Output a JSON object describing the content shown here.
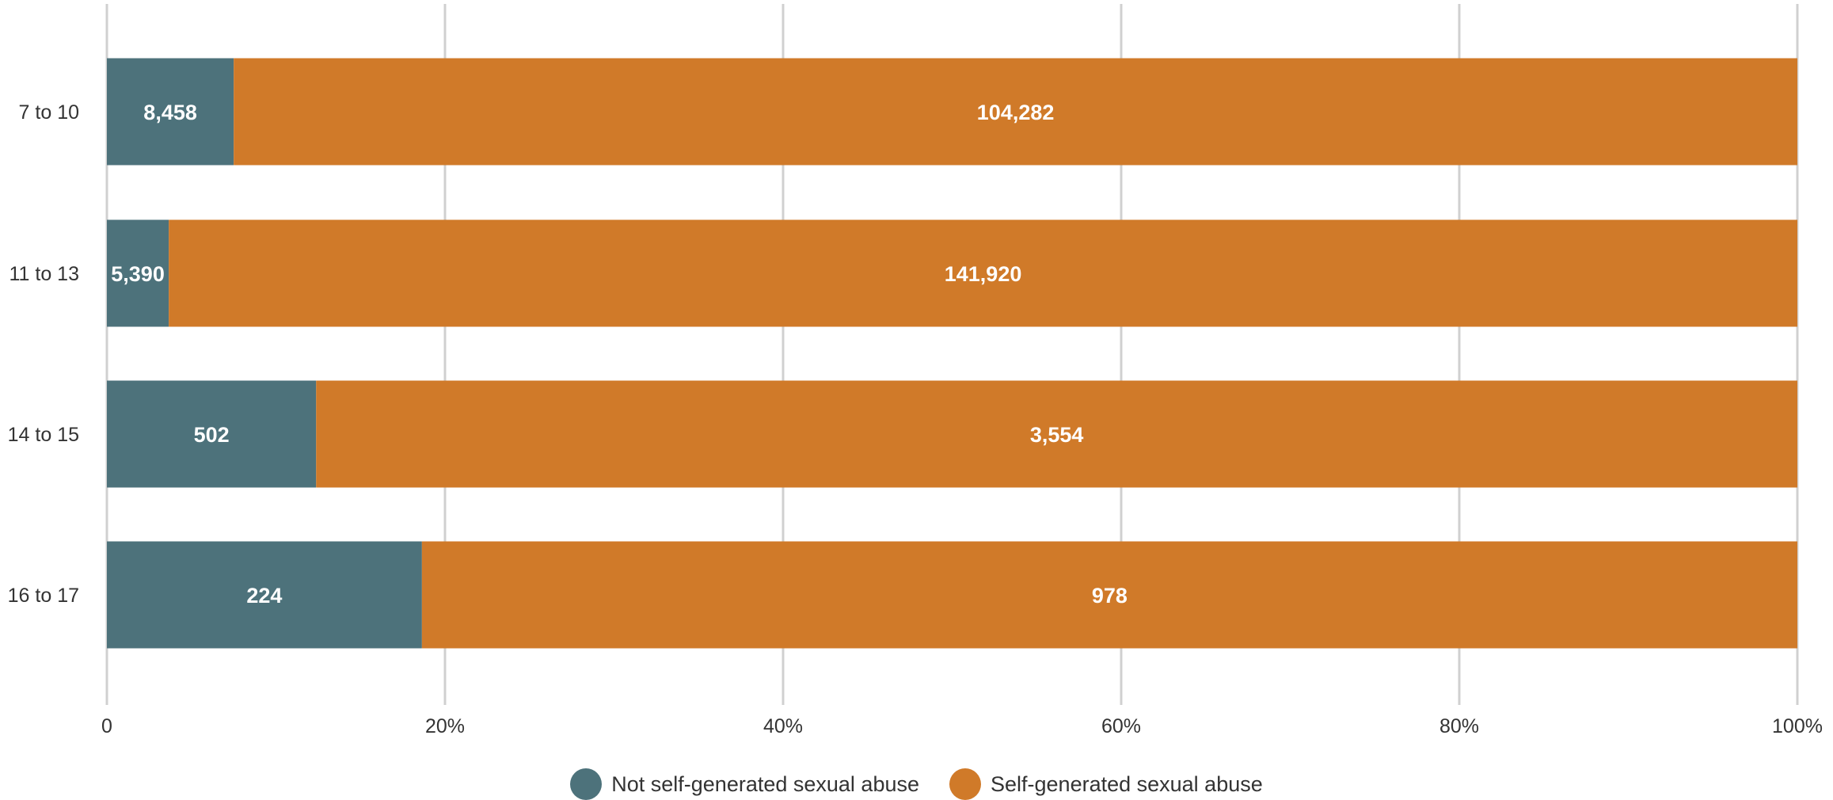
{
  "chart_data": {
    "type": "bar",
    "orientation": "horizontal",
    "stacked": "percent",
    "categories": [
      "7 to 10",
      "11 to 13",
      "14 to 15",
      "16 to 17"
    ],
    "series": [
      {
        "name": "Not self-generated sexual abuse",
        "color": "#4d727b",
        "values": [
          8458,
          5390,
          502,
          224
        ],
        "labels": [
          "8,458",
          "5,390",
          "502",
          "224"
        ]
      },
      {
        "name": "Self-generated sexual abuse",
        "color": "#d07a29",
        "values": [
          104282,
          141920,
          3554,
          978
        ],
        "labels": [
          "104,282",
          "141,920",
          "3,554",
          "978"
        ]
      }
    ],
    "xlim": [
      0,
      100
    ],
    "xticks": [
      0,
      20,
      40,
      60,
      80,
      100
    ],
    "xtick_labels": [
      "0",
      "20%",
      "40%",
      "60%",
      "80%",
      "100%"
    ],
    "grid": true,
    "legend_position": "bottom"
  }
}
